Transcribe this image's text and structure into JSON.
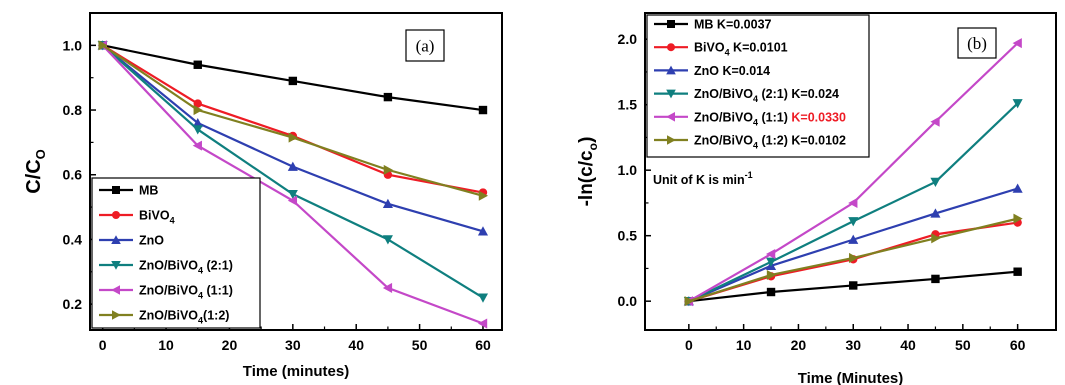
{
  "chart_data": [
    {
      "type": "line",
      "panel_label": "(a)",
      "xlabel": "Time (minutes)",
      "ylabel": "C/C",
      "ylabel_sub": "O",
      "xlim": [
        -2,
        63
      ],
      "ylim": [
        0.12,
        1.1
      ],
      "xticks": [
        0,
        10,
        20,
        30,
        40,
        50,
        60
      ],
      "yticks": [
        0.2,
        0.4,
        0.6,
        0.8,
        1.0
      ],
      "ytick_labels": [
        "0.2",
        "0.4",
        "0.6",
        "0.8",
        "1.0"
      ],
      "legend_position": "bottom-left",
      "x": [
        0,
        15,
        30,
        45,
        60
      ],
      "series": [
        {
          "name": "MB",
          "color": "#000000",
          "marker": "square",
          "values": [
            1.0,
            0.94,
            0.89,
            0.84,
            0.8
          ]
        },
        {
          "name": "BiVO",
          "name_sub": "4",
          "color": "#ee1c25",
          "marker": "circle",
          "values": [
            1.0,
            0.82,
            0.72,
            0.6,
            0.545
          ]
        },
        {
          "name": "ZnO",
          "color": "#2e3fb0",
          "marker": "triangle-up",
          "values": [
            1.0,
            0.76,
            0.625,
            0.51,
            0.425
          ]
        },
        {
          "name": "ZnO/BiVO",
          "name_sub": "4",
          "name_suffix": " (2:1)",
          "color": "#0f7f7f",
          "marker": "triangle-down",
          "values": [
            1.0,
            0.74,
            0.54,
            0.4,
            0.22
          ]
        },
        {
          "name": "ZnO/BiVO",
          "name_sub": "4",
          "name_suffix": " (1:1)",
          "color": "#c448c8",
          "marker": "triangle-left",
          "values": [
            1.0,
            0.69,
            0.52,
            0.25,
            0.14
          ]
        },
        {
          "name": "ZnO/BiVO",
          "name_sub": "4",
          "name_suffix": "(1:2)",
          "color": "#808020",
          "marker": "triangle-right",
          "values": [
            1.0,
            0.8,
            0.715,
            0.615,
            0.535
          ]
        }
      ]
    },
    {
      "type": "line",
      "panel_label": "(b)",
      "xlabel": "Time (Minutes)",
      "ylabel": "-ln(c/c",
      "ylabel_sub": "o",
      "ylabel_end": ")",
      "xlim": [
        -8,
        67
      ],
      "ylim": [
        -0.22,
        2.2
      ],
      "xticks": [
        0,
        10,
        20,
        30,
        40,
        50,
        60
      ],
      "yticks": [
        0.0,
        0.5,
        1.0,
        1.5,
        2.0
      ],
      "ytick_labels": [
        "0.0",
        "0.5",
        "1.0",
        "1.5",
        "2.0"
      ],
      "legend_position": "top-left",
      "annotation": "Unit of K is min",
      "annotation_sup": "-1",
      "x": [
        0,
        15,
        30,
        45,
        60
      ],
      "series": [
        {
          "name": "MB K=0.0037",
          "color": "#000000",
          "marker": "square",
          "values": [
            0.0,
            0.07,
            0.12,
            0.17,
            0.225
          ]
        },
        {
          "name": "BiVO",
          "name_sub": "4",
          "name_suffix": " K=0.0101",
          "color": "#ee1c25",
          "marker": "circle",
          "values": [
            0.0,
            0.19,
            0.32,
            0.51,
            0.6
          ]
        },
        {
          "name": "ZnO K=0.014",
          "color": "#2e3fb0",
          "marker": "triangle-up",
          "values": [
            0.0,
            0.27,
            0.47,
            0.67,
            0.86
          ]
        },
        {
          "name": "ZnO/BiVO",
          "name_sub": "4",
          "name_suffix": " (2:1) K=0.024",
          "color": "#0f7f7f",
          "marker": "triangle-down",
          "values": [
            0.0,
            0.3,
            0.61,
            0.91,
            1.51
          ]
        },
        {
          "name": "ZnO/BiVO",
          "name_sub": "4",
          "name_suffix": " (1:1) ",
          "name_highlight": "K=0.0330",
          "highlight_color": "#ee1c25",
          "color": "#c448c8",
          "marker": "triangle-left",
          "values": [
            0.0,
            0.36,
            0.75,
            1.37,
            1.97
          ]
        },
        {
          "name": "ZnO/BiVO",
          "name_sub": "4",
          "name_suffix": " (1:2) K=0.0102",
          "color": "#808020",
          "marker": "triangle-right",
          "values": [
            0.0,
            0.2,
            0.33,
            0.48,
            0.63
          ]
        }
      ]
    }
  ]
}
